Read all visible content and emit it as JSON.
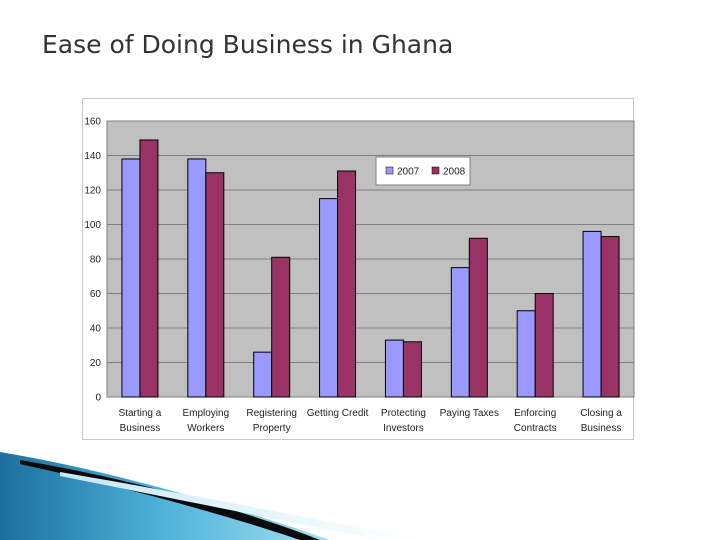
{
  "slide": {
    "title": "Ease of Doing Business in Ghana"
  },
  "chart_data": {
    "type": "bar",
    "categories": [
      [
        "Starting a",
        "Business"
      ],
      [
        "Employing",
        "Workers"
      ],
      [
        "Registering",
        "Property"
      ],
      [
        "Getting Credit"
      ],
      [
        "Protecting",
        "Investors"
      ],
      [
        "Paying Taxes"
      ],
      [
        "Enforcing",
        "Contracts"
      ],
      [
        "Closing a",
        "Business"
      ]
    ],
    "series": [
      {
        "name": "2007",
        "color": "#9999ff",
        "values": [
          138,
          138,
          26,
          115,
          33,
          75,
          50,
          96
        ]
      },
      {
        "name": "2008",
        "color": "#993366",
        "values": [
          149,
          130,
          81,
          131,
          32,
          92,
          60,
          93
        ]
      }
    ],
    "yticks": [
      "0",
      "20",
      "40",
      "60",
      "80",
      "100",
      "120",
      "140",
      "160"
    ],
    "ylim": [
      0,
      160
    ],
    "grid": true,
    "plot_background": "#c0c0c0",
    "legend_position": "top-right"
  }
}
